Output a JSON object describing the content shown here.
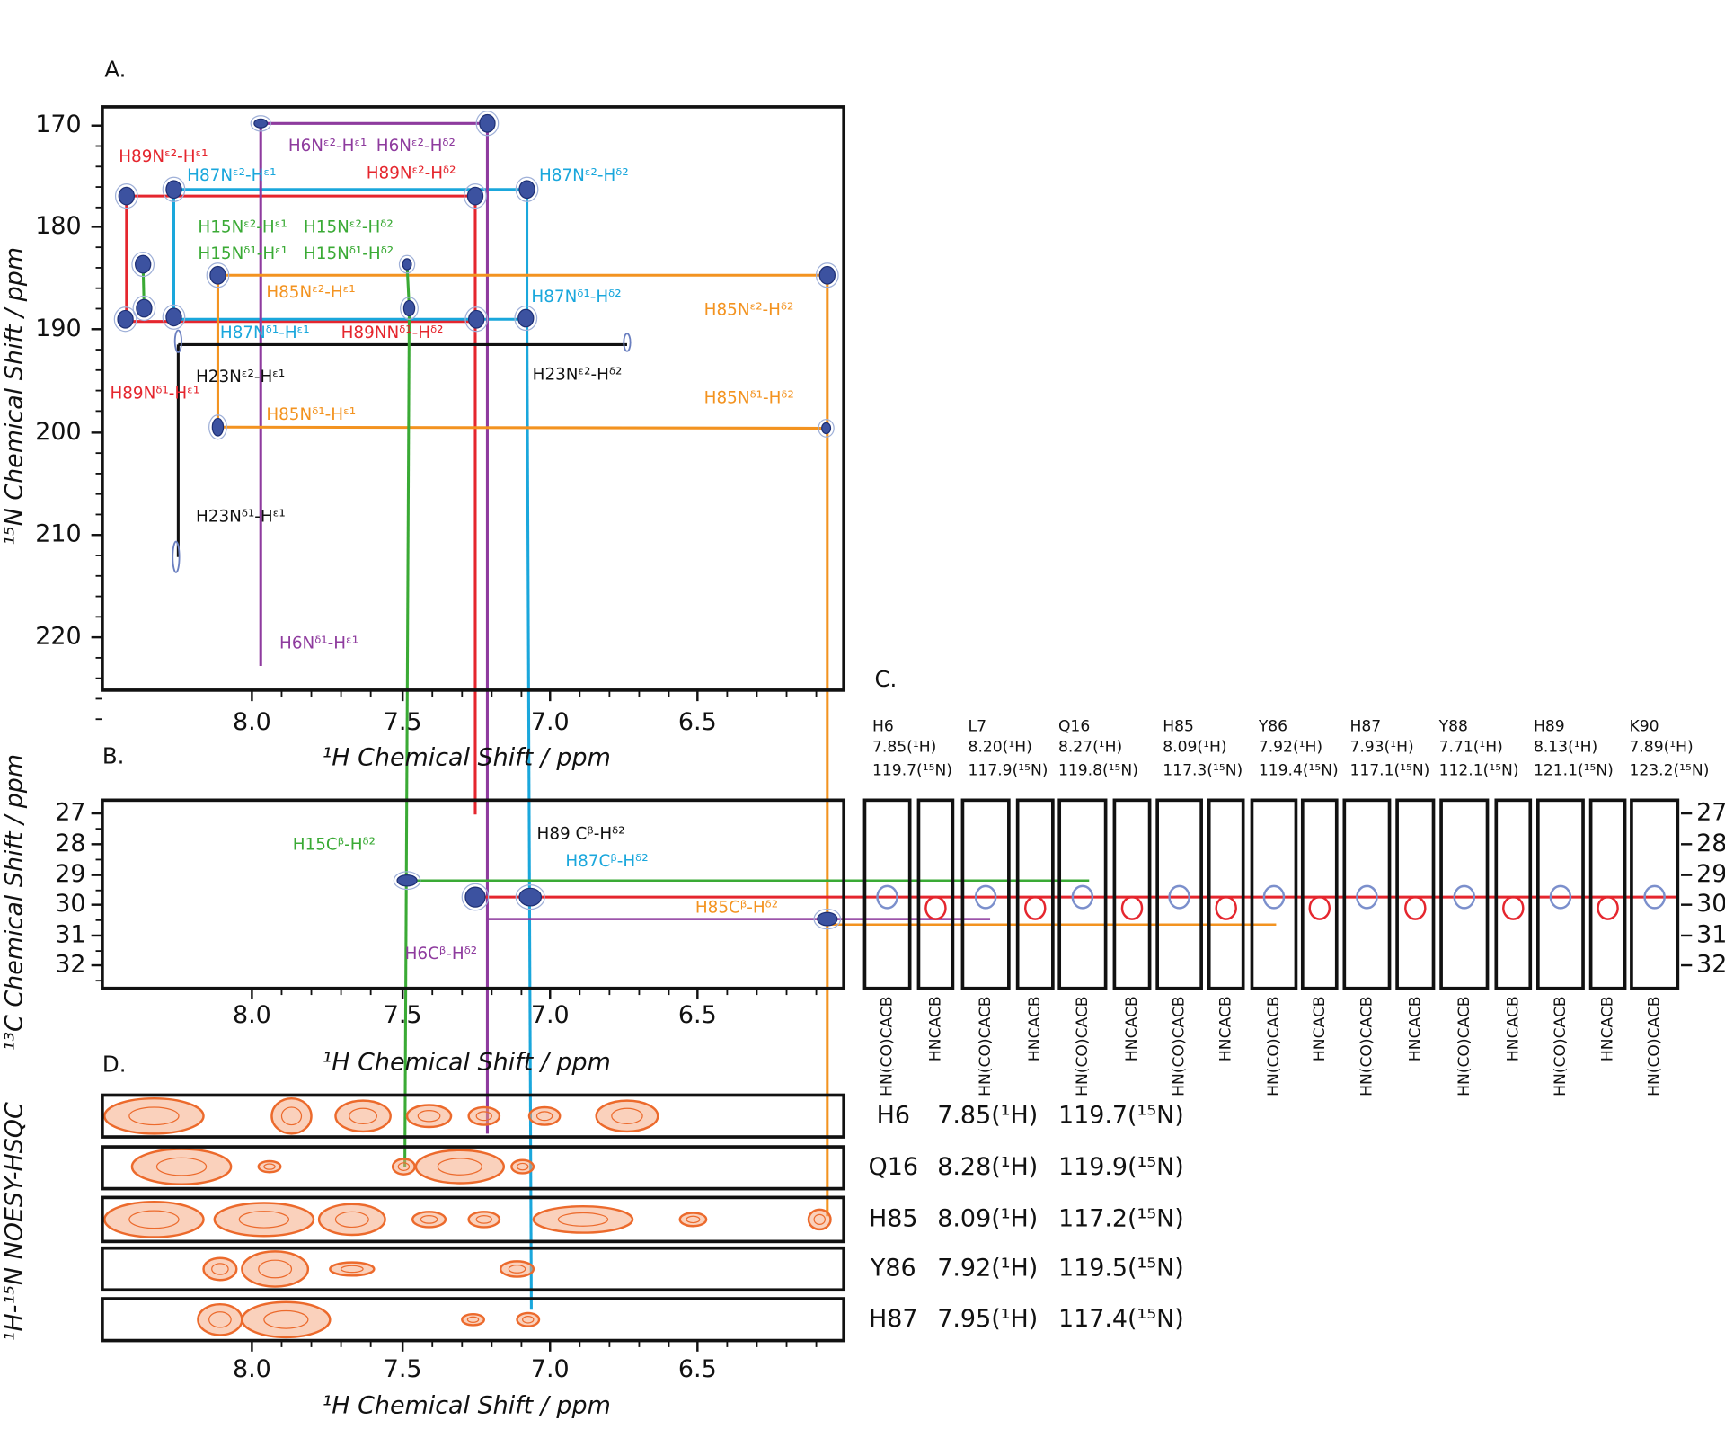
{
  "panel_a": {
    "label": "A.",
    "x_axis_title": "¹H Chemical Shift / ppm",
    "y_axis_title": "¹⁵N Chemical Shift / ppm",
    "x_ticks": [
      "8.0",
      "7.5",
      "7.0",
      "6.5"
    ],
    "y_ticks": [
      "170",
      "180",
      "190",
      "200",
      "210",
      "220"
    ],
    "annotations": [
      "H89Nᵋ²-Hᵋ¹",
      "H87Nᵋ²-Hᵋ¹",
      "H6Nᵋ²-Hᵋ¹",
      "H6Nᵋ²-Hᵟ²",
      "H89Nᵋ²-Hᵟ²",
      "H87Nᵋ²-Hᵟ²",
      "H15Nᵋ²-Hᵋ¹",
      "H15Nᵋ²-Hᵟ²",
      "H15Nᵟ¹-Hᵋ¹",
      "H15Nᵟ¹-Hᵟ²",
      "H85Nᵋ²-Hᵋ¹",
      "H87Nᵟ¹-Hᵟ²",
      "H85Nᵋ²-Hᵟ²",
      "H87Nᵟ¹-Hᵋ¹",
      "H89NNᵟ¹-Hᵟ²",
      "H23Nᵋ²-Hᵋ¹",
      "H23Nᵋ²-Hᵟ²",
      "H89Nᵟ¹-Hᵋ¹",
      "H85Nᵟ¹-Hᵟ²",
      "H85Nᵟ¹-Hᵋ¹",
      "H23Nᵟ¹-Hᵋ¹",
      "H6Nᵟ¹-Hᵋ¹"
    ]
  },
  "panel_b": {
    "label": "B.",
    "x_axis_title": "¹H Chemical Shift / ppm",
    "y_axis_title": "¹³C Chemical Shift / ppm",
    "x_ticks": [
      "8.0",
      "7.5",
      "7.0",
      "6.5"
    ],
    "y_ticks": [
      "27",
      "28",
      "29",
      "30",
      "31",
      "32"
    ],
    "annotations": [
      "H15Cᵝ-Hᵟ²",
      "H89 Cᵝ-Hᵟ²",
      "H87Cᵝ-Hᵟ²",
      "H6Cᵝ-Hᵟ²",
      "H85Cᵝ-Hᵟ²"
    ]
  },
  "panel_c": {
    "label": "C.",
    "residues": [
      [
        "H6",
        "7.85(¹H)",
        "119.7(¹⁵N)"
      ],
      [
        "L7",
        "8.20(¹H)",
        "117.9(¹⁵N)"
      ],
      [
        "Q16",
        "8.27(¹H)",
        "119.8(¹⁵N)"
      ],
      [
        "H85",
        "8.09(¹H)",
        "117.3(¹⁵N)"
      ],
      [
        "Y86",
        "7.92(¹H)",
        "119.4(¹⁵N)"
      ],
      [
        "H87",
        "7.93(¹H)",
        "117.1(¹⁵N)"
      ],
      [
        "Y88",
        "7.71(¹H)",
        "112.1(¹⁵N)"
      ],
      [
        "H89",
        "8.13(¹H)",
        "121.1(¹⁵N)"
      ],
      [
        "K90",
        "7.89(¹H)",
        "123.2(¹⁵N)"
      ]
    ],
    "y_ticks": [
      "27",
      "28",
      "29",
      "30",
      "31",
      "32"
    ],
    "strip_labels": [
      "HN(CO)CACB",
      "HNCACB",
      "HN(CO)CACB",
      "HNCACB",
      "HN(CO)CACB",
      "HNCACB",
      "HN(CO)CACB",
      "HNCACB",
      "HN(CO)CACB",
      "HNCACB",
      "HN(CO)CACB",
      "HNCACB",
      "HN(CO)CACB",
      "HNCACB",
      "HN(CO)CACB",
      "HNCACB",
      "HN(CO)CACB"
    ]
  },
  "panel_d": {
    "label": "D.",
    "x_axis_title": "¹H Chemical Shift / ppm",
    "y_axis_title": "¹H-¹⁵N NOESY-HSQC",
    "x_ticks": [
      "8.0",
      "7.5",
      "7.0",
      "6.5"
    ],
    "rows": [
      [
        "H6",
        "7.85(¹H)",
        "119.7(¹⁵N)"
      ],
      [
        "Q16",
        "8.28(¹H)",
        "119.9(¹⁵N)"
      ],
      [
        "H85",
        "8.09(¹H)",
        "117.2(¹⁵N)"
      ],
      [
        "Y86",
        "7.92(¹H)",
        "119.5(¹⁵N)"
      ],
      [
        "H87",
        "7.95(¹H)",
        "117.4(¹⁵N)"
      ]
    ]
  }
}
